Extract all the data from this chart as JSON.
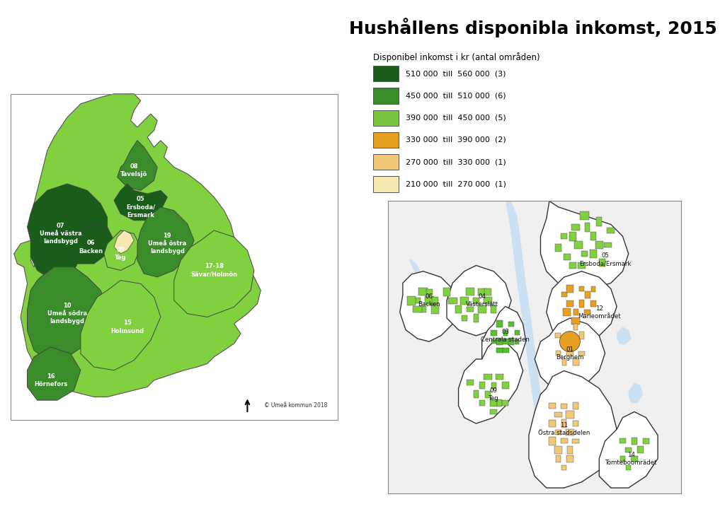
{
  "title": "Hushållens disponibla inkomst, 2015",
  "title_fontsize": 18,
  "title_fontweight": "bold",
  "background_color": "#ffffff",
  "legend_title": "Disponibel inkomst i kr (antal områden)",
  "legend_entries": [
    {
      "label": "510 000  till  560 000  (3)",
      "color": "#1a5c1a"
    },
    {
      "label": "450 000  till  510 000  (6)",
      "color": "#3a8c2a"
    },
    {
      "label": "390 000  till  450 000  (5)",
      "color": "#76c442"
    },
    {
      "label": "330 000  till  390 000  (2)",
      "color": "#e8a020"
    },
    {
      "label": "270 000  till  330 000  (1)",
      "color": "#f0c878"
    },
    {
      "label": "210 000  till  270 000  (1)",
      "color": "#f5e8b0"
    }
  ],
  "map_water_color": "#cce0f0",
  "copyright_text": "© Umeå kommun 2018",
  "col_darkest": "#1a5c1a",
  "col_dark": "#2d7a1a",
  "col_medium": "#5abf30",
  "col_light_green": "#80d040",
  "col_orange": "#e8a020",
  "col_light_orange": "#f0c878",
  "col_lightest": "#f5e8b0"
}
